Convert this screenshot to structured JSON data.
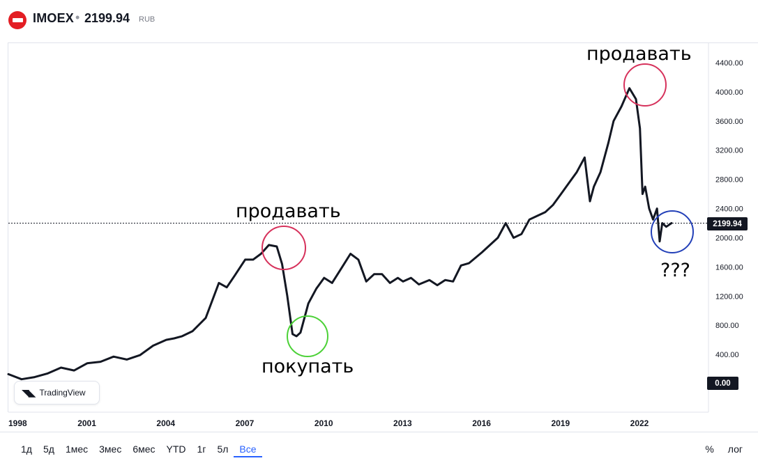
{
  "header": {
    "ticker": "IMOEX",
    "separator": "•",
    "price": "2199.94",
    "currency": "RUB",
    "logo_icon": "moex-logo-icon",
    "logo_color": "#e31e24"
  },
  "price_tag": "2199.94",
  "zero_tag": "0.00",
  "watermark": {
    "icon": "tradingview-logo-icon",
    "label": "TradingView"
  },
  "annotations": {
    "sell_1": "продавать",
    "sell_2": "продавать",
    "buy": "покупать",
    "question": "???"
  },
  "timeframes": {
    "items": [
      "1д",
      "5д",
      "1мес",
      "3мес",
      "6мес",
      "YTD",
      "1г",
      "5л",
      "Все"
    ],
    "active": "Все"
  },
  "footer_right": {
    "percent": "%",
    "log": "лог"
  },
  "colors": {
    "line": "#131722",
    "circle_sell": "#d6315b",
    "circle_buy": "#4cd137",
    "circle_question": "#2340b8",
    "accent": "#2962ff"
  },
  "chart_data": {
    "type": "line",
    "series": [
      {
        "x": [
          1998.0,
          1998.5,
          1999.0,
          1999.5,
          2000.0,
          2000.5,
          2001.0,
          2001.5,
          2002.0,
          2002.5,
          2003.0,
          2003.5,
          2004.0,
          2004.3,
          2004.6,
          2005.0,
          2005.5,
          2006.0,
          2006.3,
          2006.6,
          2007.0,
          2007.3,
          2007.6,
          2007.9,
          2008.2,
          2008.4,
          2008.6,
          2008.8,
          2008.95,
          2009.1,
          2009.4,
          2009.7,
          2010.0,
          2010.3,
          2010.6,
          2011.0,
          2011.3,
          2011.6,
          2011.9,
          2012.2,
          2012.5,
          2012.8,
          2013.0,
          2013.3,
          2013.6,
          2014.0,
          2014.3,
          2014.6,
          2014.9,
          2015.2,
          2015.5,
          2016.0,
          2016.3,
          2016.6,
          2016.9,
          2017.2,
          2017.5,
          2017.8,
          2018.1,
          2018.4,
          2018.7,
          2019.0,
          2019.3,
          2019.6,
          2019.9,
          2020.1,
          2020.25,
          2020.5,
          2020.8,
          2021.0,
          2021.3,
          2021.6,
          2021.85,
          2022.0,
          2022.1,
          2022.2,
          2022.35,
          2022.5,
          2022.65,
          2022.75,
          2022.85,
          2023.0,
          2023.2
        ],
        "values": [
          130,
          60,
          90,
          140,
          220,
          180,
          280,
          300,
          370,
          330,
          390,
          520,
          600,
          620,
          650,
          720,
          900,
          1380,
          1320,
          1480,
          1700,
          1700,
          1780,
          1900,
          1880,
          1640,
          1200,
          680,
          650,
          700,
          1100,
          1300,
          1450,
          1380,
          1550,
          1780,
          1700,
          1400,
          1500,
          1500,
          1380,
          1450,
          1400,
          1450,
          1360,
          1420,
          1350,
          1420,
          1400,
          1620,
          1650,
          1800,
          1900,
          2000,
          2200,
          2000,
          2050,
          2250,
          2300,
          2350,
          2450,
          2600,
          2750,
          2900,
          3100,
          2500,
          2700,
          2900,
          3300,
          3600,
          3800,
          4050,
          3900,
          3500,
          2600,
          2700,
          2400,
          2250,
          2400,
          1950,
          2200,
          2150,
          2200
        ]
      }
    ],
    "xlim": [
      1998,
      2024.5
    ],
    "ylim": [
      -150,
      4800
    ],
    "x_ticks": [
      "1998",
      "2001",
      "2004",
      "2007",
      "2010",
      "2013",
      "2016",
      "2019",
      "2022"
    ],
    "y_ticks": [
      "4400.00",
      "4000.00",
      "3600.00",
      "3200.00",
      "2800.00",
      "2400.00",
      "2000.00",
      "1600.00",
      "1200.00",
      "800.00",
      "400.00"
    ],
    "current_value": 2199.94,
    "grid": false,
    "price_line": "dotted"
  }
}
